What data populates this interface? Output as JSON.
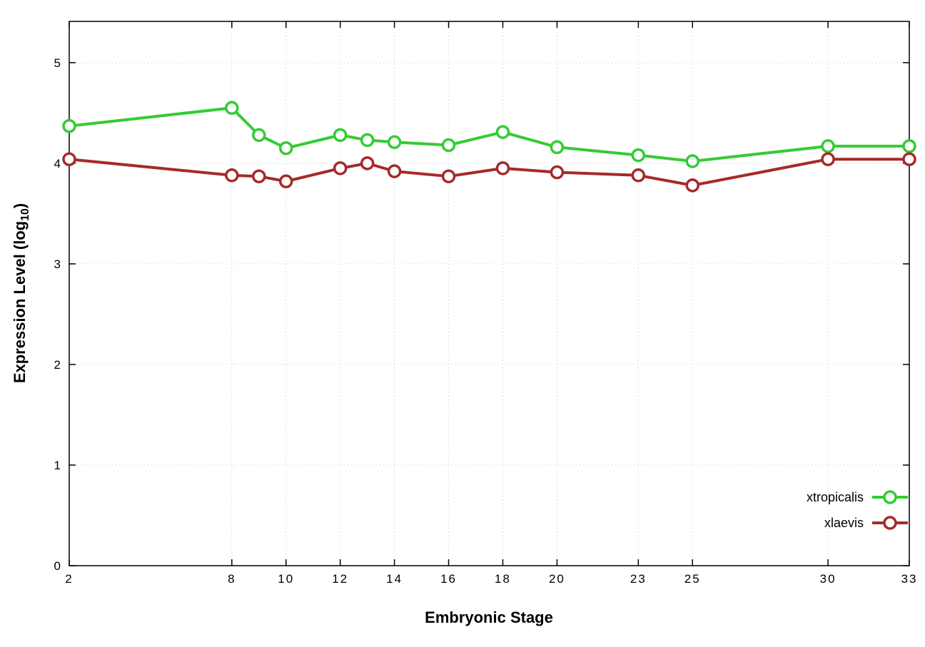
{
  "chart_data": {
    "type": "line",
    "title": "",
    "xlabel": "Embryonic Stage",
    "ylabel": "Expression Level (log10)",
    "ylabel_parts": {
      "prefix": "Expression Level (log",
      "sub": "10",
      "suffix": ")"
    },
    "x": [
      2,
      8,
      9,
      10,
      12,
      13,
      14,
      16,
      18,
      20,
      23,
      25,
      30,
      33
    ],
    "xticks": [
      2,
      8,
      10,
      12,
      14,
      16,
      18,
      20,
      23,
      25,
      30,
      33
    ],
    "yticks": [
      0,
      1,
      2,
      3,
      4,
      5
    ],
    "xlim": [
      2,
      33
    ],
    "ylim": [
      0,
      5.41
    ],
    "grid": true,
    "legend_position": "bottom-right",
    "series": [
      {
        "name": "xtropicalis",
        "color": "#33cc33",
        "marker": "open-circle",
        "values": [
          4.37,
          4.55,
          4.28,
          4.15,
          4.28,
          4.23,
          4.21,
          4.18,
          4.31,
          4.16,
          4.08,
          4.02,
          4.17,
          4.17
        ]
      },
      {
        "name": "xlaevis",
        "color": "#a52a2a",
        "marker": "open-circle",
        "values": [
          4.04,
          3.88,
          3.87,
          3.82,
          3.95,
          4.0,
          3.92,
          3.87,
          3.95,
          3.91,
          3.88,
          3.78,
          4.04,
          4.04
        ]
      }
    ]
  }
}
